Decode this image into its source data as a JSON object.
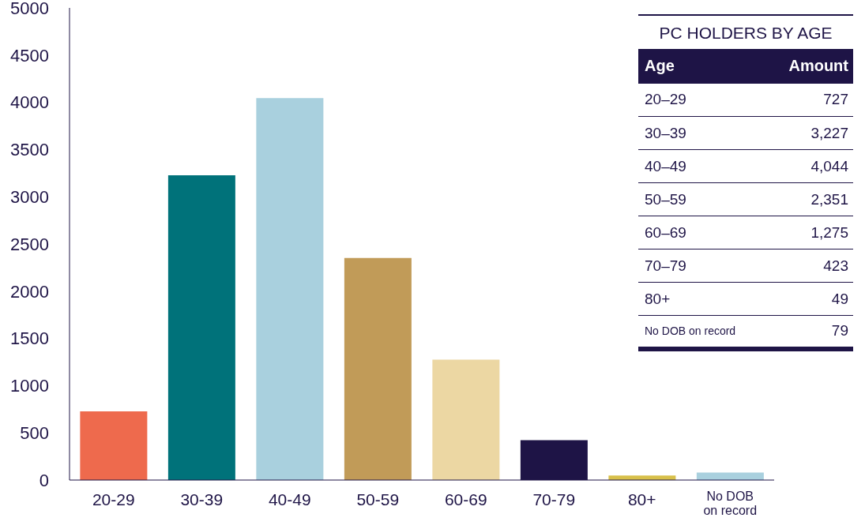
{
  "chart_data": {
    "type": "bar",
    "title": "PC HOLDERS BY AGE",
    "categories": [
      "20-29",
      "30-39",
      "40-49",
      "50-59",
      "60-69",
      "70-79",
      "80+",
      "No DOB on record"
    ],
    "values": [
      727,
      3227,
      4044,
      2351,
      1275,
      423,
      49,
      79
    ],
    "colors": [
      "#ee6a4d",
      "#00727a",
      "#a9d0de",
      "#c19b58",
      "#ecd7a3",
      "#1e1446",
      "#d8c04a",
      "#a9d0de"
    ],
    "annotations": [
      "Age",
      "Amount",
      "20–29",
      "727",
      "30–39",
      "3,227",
      "40–49",
      "4,044",
      "50–59",
      "2,351",
      "60–69",
      "1,275",
      "70–79",
      "423",
      "80+",
      "49",
      "No DOB on record",
      "79"
    ],
    "ylim": [
      0,
      5000
    ],
    "yticks": [
      0,
      500,
      1000,
      1500,
      2000,
      2500,
      3000,
      3500,
      4000,
      4500,
      5000
    ]
  }
}
